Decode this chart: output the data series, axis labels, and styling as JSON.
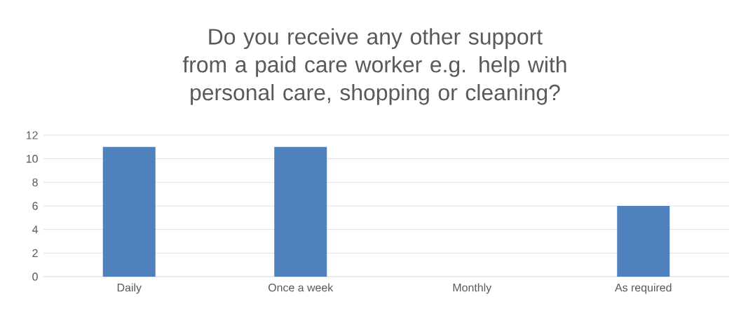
{
  "chart_data": {
    "type": "bar",
    "title": "Do you receive any other support from a paid care worker  e.g. help with personal care, shopping or cleaning?",
    "categories": [
      "Daily",
      "Once a week",
      "Monthly",
      "As required"
    ],
    "values": [
      11,
      11,
      0,
      6
    ],
    "color": "#4f81bd",
    "ylim": [
      0,
      12
    ],
    "yticks": [
      0,
      2,
      4,
      6,
      8,
      10,
      12
    ],
    "grid": "y"
  }
}
